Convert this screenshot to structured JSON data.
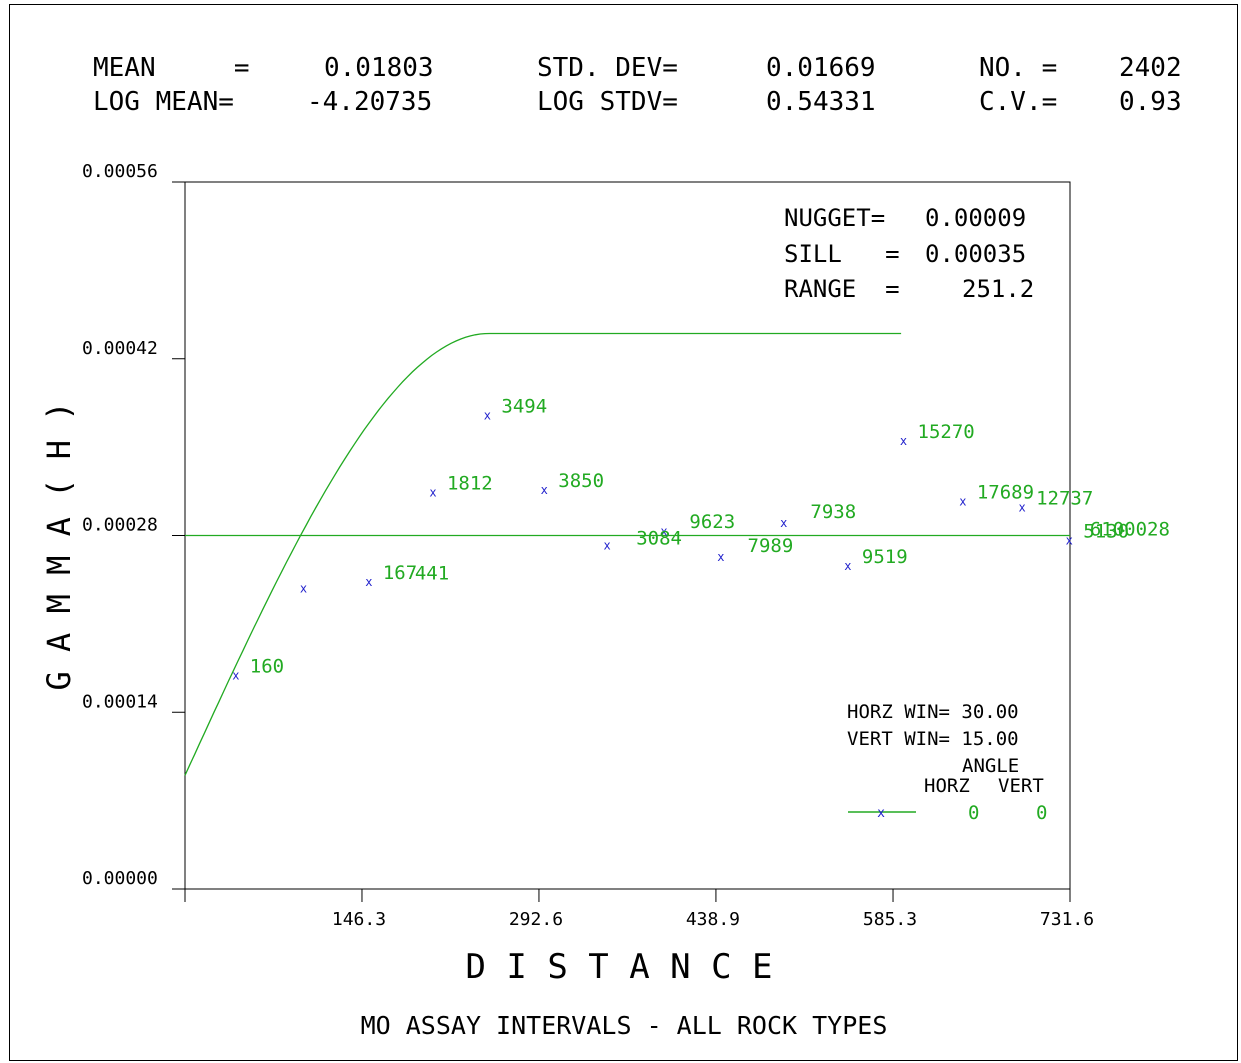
{
  "stats": {
    "mean_label": "MEAN     =",
    "mean_value": "0.01803",
    "std_label": "STD. DEV=",
    "std_value": "0.01669",
    "no_label": "NO. =",
    "no_value": "2402",
    "logmean_label": "LOG MEAN=",
    "logmean_value": "-4.20735",
    "logstd_label": "LOG STDV=",
    "logstd_value": "0.54331",
    "cv_label": "C.V.=",
    "cv_value": "0.93"
  },
  "model": {
    "nugget_label": "NUGGET=",
    "nugget_value": "0.00009",
    "sill_label": "SILL   =",
    "sill_value": "0.00035",
    "range_label": "RANGE  =",
    "range_value": "251.2"
  },
  "legend": {
    "horz_win": "HORZ WIN= 30.00",
    "vert_win": "VERT WIN= 15.00",
    "angle": "ANGLE",
    "horz": "HORZ",
    "vert": "VERT",
    "horz_value": "0",
    "vert_value": "0"
  },
  "colors": {
    "curve": "#22aa22",
    "label": "#22aa22",
    "marker": "#2222cc",
    "axis": "#000000"
  },
  "chart_data": {
    "type": "scatter",
    "xlabel": "D I S T A N C E",
    "ylabel": "G A M M A ( H )",
    "title": "MO ASSAY INTERVALS - ALL ROCK TYPES",
    "xlim": [
      0,
      731.6
    ],
    "ylim": [
      0,
      0.00056
    ],
    "x_ticks": [
      146.3,
      292.6,
      438.9,
      585.3,
      731.6
    ],
    "x_tick_labels": [
      "146.3",
      "292.6",
      "438.9",
      "585.3",
      "731.6"
    ],
    "y_ticks": [
      0,
      0.00014,
      0.00028,
      0.00042,
      0.00056
    ],
    "y_tick_labels": [
      "0.00000",
      "0.00014",
      "0.00028",
      "0.00042",
      "0.00056"
    ],
    "mean_line": 0.00028,
    "points": [
      {
        "x": 42,
        "y": 0.000169,
        "label": "160"
      },
      {
        "x": 98,
        "y": 0.000238,
        "label": ""
      },
      {
        "x": 152,
        "y": 0.000243,
        "label": "167"
      },
      {
        "x": 205,
        "y": 0.000314,
        "label": "1812"
      },
      {
        "x": 250,
        "y": 0.000375,
        "label": "3494"
      },
      {
        "x": 297,
        "y": 0.000316,
        "label": "3850"
      },
      {
        "x": 349,
        "y": 0.000272,
        "label": ""
      },
      {
        "x": 396,
        "y": 0.000283,
        "label": ""
      },
      {
        "x": 443,
        "y": 0.000263,
        "label": ""
      },
      {
        "x": 495,
        "y": 0.00029,
        "label": ""
      },
      {
        "x": 548,
        "y": 0.000256,
        "label": "9519"
      },
      {
        "x": 594,
        "y": 0.000355,
        "label": "15270"
      },
      {
        "x": 643,
        "y": 0.000307,
        "label": "17689"
      },
      {
        "x": 692,
        "y": 0.000302,
        "label": "12737"
      },
      {
        "x": 731,
        "y": 0.000276,
        "label": "5130"
      }
    ],
    "extra_labels": [
      {
        "x": 190,
        "y": 0.000245,
        "text": "441"
      },
      {
        "x": 373,
        "y": 0.000273,
        "text": "3084"
      },
      {
        "x": 417,
        "y": 0.000286,
        "text": "9623"
      },
      {
        "x": 465,
        "y": 0.000267,
        "text": "7989"
      },
      {
        "x": 517,
        "y": 0.000294,
        "text": "7938"
      },
      {
        "x": 748,
        "y": 0.00028,
        "text": "6100028"
      }
    ],
    "model_curve": {
      "nugget": 9e-05,
      "sill": 0.00035,
      "range": 251.2,
      "x_end": 592
    }
  }
}
